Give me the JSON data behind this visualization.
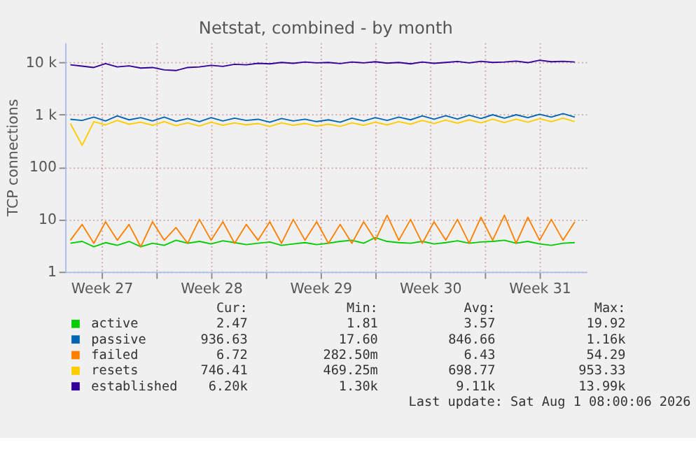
{
  "chart_data": {
    "type": "line",
    "title": "Netstat, combined - by month",
    "ylabel": "TCP connections",
    "x": [
      "2026-06-29T12:00",
      "2026-06-30T06:00",
      "2026-07-01T00:00",
      "2026-07-01T18:00",
      "2026-07-02T12:00",
      "2026-07-03T06:00",
      "2026-07-04T00:00",
      "2026-07-04T18:00",
      "2026-07-05T12:00",
      "2026-07-06T06:00",
      "2026-07-07T00:00",
      "2026-07-07T18:00",
      "2026-07-08T12:00",
      "2026-07-09T06:00",
      "2026-07-10T00:00",
      "2026-07-10T18:00",
      "2026-07-11T12:00",
      "2026-07-12T06:00",
      "2026-07-13T00:00",
      "2026-07-13T18:00",
      "2026-07-14T12:00",
      "2026-07-15T06:00",
      "2026-07-16T00:00",
      "2026-07-16T18:00",
      "2026-07-17T12:00",
      "2026-07-18T06:00",
      "2026-07-19T00:00",
      "2026-07-19T18:00",
      "2026-07-20T12:00",
      "2026-07-21T06:00",
      "2026-07-22T00:00",
      "2026-07-22T18:00",
      "2026-07-23T12:00",
      "2026-07-24T06:00",
      "2026-07-25T00:00",
      "2026-07-25T18:00",
      "2026-07-26T12:00",
      "2026-07-27T06:00",
      "2026-07-28T00:00",
      "2026-07-28T18:00",
      "2026-07-29T12:00",
      "2026-07-30T06:00",
      "2026-07-31T00:00",
      "2026-07-31T18:00"
    ],
    "series": [
      {
        "name": "active",
        "color": "#00cc00",
        "values": [
          3.5,
          3.8,
          3,
          3.6,
          3.2,
          3.8,
          3,
          3.5,
          3.2,
          4,
          3.5,
          3.8,
          3.4,
          3.9,
          3.6,
          3.3,
          3.5,
          3.7,
          3.2,
          3.4,
          3.6,
          3.3,
          3.5,
          3.8,
          4,
          3.5,
          4.5,
          3.8,
          3.6,
          3.5,
          3.8,
          3.4,
          3.6,
          3.9,
          3.5,
          3.7,
          3.8,
          4,
          3.5,
          3.8,
          3.4,
          3.2,
          3.5,
          3.6
        ]
      },
      {
        "name": "passive",
        "color": "#0066b3",
        "values": [
          820,
          780,
          900,
          760,
          950,
          800,
          880,
          760,
          900,
          750,
          850,
          740,
          880,
          760,
          860,
          780,
          820,
          720,
          850,
          760,
          820,
          740,
          800,
          720,
          860,
          760,
          880,
          780,
          900,
          800,
          950,
          820,
          960,
          830,
          980,
          850,
          1000,
          860,
          1000,
          880,
          1020,
          900,
          1050,
          900
        ]
      },
      {
        "name": "failed",
        "color": "#ff8000",
        "values": [
          4,
          8,
          3.5,
          9,
          4,
          8,
          3,
          9,
          4,
          7,
          3.5,
          10,
          4,
          9,
          3.5,
          8,
          4,
          9,
          3.5,
          10,
          4,
          9,
          3.5,
          8,
          3.5,
          9,
          4,
          12,
          4,
          10,
          3.5,
          9,
          4,
          10,
          3.5,
          11,
          4,
          12,
          3.5,
          11,
          4,
          10,
          4,
          9
        ]
      },
      {
        "name": "resets",
        "color": "#ffcc00",
        "values": [
          680,
          260,
          740,
          640,
          780,
          660,
          720,
          630,
          740,
          620,
          700,
          610,
          720,
          630,
          700,
          640,
          680,
          600,
          700,
          630,
          680,
          610,
          660,
          600,
          700,
          630,
          720,
          640,
          740,
          660,
          780,
          680,
          790,
          690,
          800,
          700,
          820,
          710,
          820,
          720,
          840,
          740,
          860,
          740
        ]
      },
      {
        "name": "established",
        "color": "#330099",
        "values": [
          9000,
          8500,
          8000,
          9500,
          8200,
          8600,
          7800,
          8000,
          7200,
          7000,
          8000,
          8200,
          8800,
          8400,
          9200,
          9000,
          9600,
          9400,
          10000,
          9600,
          10200,
          9800,
          10000,
          9500,
          10200,
          9800,
          10300,
          9700,
          10000,
          9400,
          10200,
          9600,
          10000,
          10400,
          9800,
          10500,
          10000,
          10200,
          10600,
          9900,
          11000,
          10300,
          10500,
          10200
        ]
      }
    ],
    "xlim": [
      "2026-06-29T04:00",
      "2026-08-01T12:00"
    ],
    "xticks": [
      {
        "value": "2026-07-01T12:00",
        "label": "Week 27"
      },
      {
        "value": "2026-07-05T00:00",
        "label": null
      },
      {
        "value": "2026-07-08T12:00",
        "label": "Week 28"
      },
      {
        "value": "2026-07-12T00:00",
        "label": null
      },
      {
        "value": "2026-07-15T12:00",
        "label": "Week 29"
      },
      {
        "value": "2026-07-19T00:00",
        "label": null
      },
      {
        "value": "2026-07-22T12:00",
        "label": "Week 30"
      },
      {
        "value": "2026-07-26T00:00",
        "label": null
      },
      {
        "value": "2026-07-29T12:00",
        "label": "Week 31"
      }
    ],
    "ylim": [
      1,
      24000
    ],
    "yticks": [
      1,
      10,
      100,
      {
        "value": 1000,
        "label": "1 k"
      },
      {
        "value": 10000,
        "label": "10 k"
      }
    ],
    "log": true,
    "grid": true,
    "legend": "bottom left",
    "marker": "none",
    "line_style": "solid",
    "annotations": [
      "Cur:",
      "Min:",
      "Avg:",
      "Max:",
      "2.47",
      "1.81",
      "3.57",
      "19.92",
      "936.63",
      "17.60",
      "846.66",
      "1.16k",
      "6.72",
      "282.50m",
      "6.43",
      "54.29",
      "746.41",
      "469.25m",
      "698.77",
      "953.33",
      "6.20k",
      "1.30k",
      "9.11k",
      "13.99k",
      "Last update: Sat Aug  1 08:00:06 2026"
    ]
  }
}
